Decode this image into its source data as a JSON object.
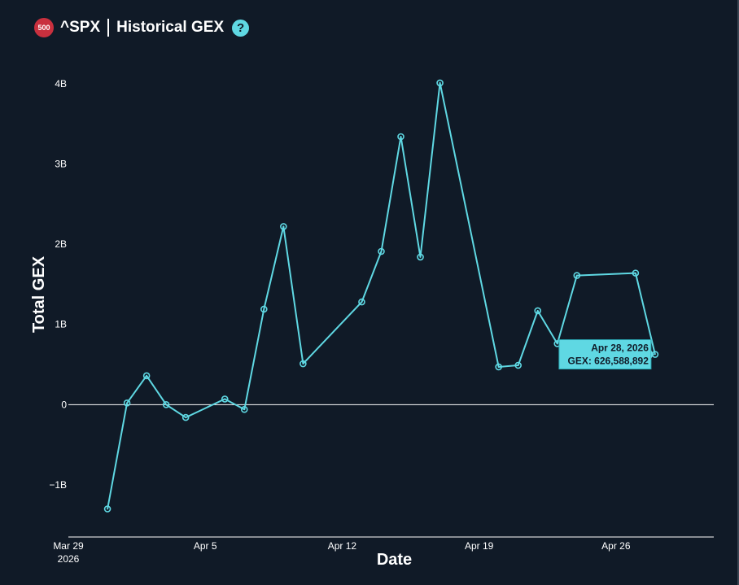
{
  "header": {
    "badge_text": "500",
    "ticker": "^SPX",
    "title": "Historical GEX",
    "help_glyph": "?"
  },
  "colors": {
    "background": "#101a27",
    "line": "#5fd8e3",
    "badge": "#c9303e",
    "zero_line": "#ffffff"
  },
  "chart_data": {
    "type": "line",
    "title": "",
    "xlabel": "Date",
    "ylabel": "Total GEX",
    "grid": false,
    "ylim": [
      -1650000000,
      4050000000
    ],
    "xlim": [
      "2026-03-29",
      "2026-05-01"
    ],
    "y_ticks": [
      {
        "value": -1000000000,
        "label": "−1B"
      },
      {
        "value": 0,
        "label": "0"
      },
      {
        "value": 1000000000,
        "label": "1B"
      },
      {
        "value": 2000000000,
        "label": "2B"
      },
      {
        "value": 3000000000,
        "label": "3B"
      },
      {
        "value": 4000000000,
        "label": "4B"
      }
    ],
    "x_ticks": [
      {
        "value": "2026-03-29",
        "label": "Mar 29",
        "sublabel": "2026"
      },
      {
        "value": "2026-04-05",
        "label": "Apr 5",
        "sublabel": ""
      },
      {
        "value": "2026-04-12",
        "label": "Apr 12",
        "sublabel": ""
      },
      {
        "value": "2026-04-19",
        "label": "Apr 19",
        "sublabel": ""
      },
      {
        "value": "2026-04-26",
        "label": "Apr 26",
        "sublabel": ""
      }
    ],
    "series": [
      {
        "x": [
          "2026-03-31",
          "2026-04-01",
          "2026-04-02",
          "2026-04-03",
          "2026-04-04",
          "2026-04-06",
          "2026-04-07",
          "2026-04-08",
          "2026-04-09",
          "2026-04-10",
          "2026-04-13",
          "2026-04-14",
          "2026-04-15",
          "2026-04-16",
          "2026-04-17",
          "2026-04-20",
          "2026-04-21",
          "2026-04-22",
          "2026-04-23",
          "2026-04-24",
          "2026-04-27",
          "2026-04-28"
        ],
        "y": [
          -1300000000,
          20000000,
          360000000,
          0,
          -160000000,
          70000000,
          -60000000,
          1190000000,
          2220000000,
          510000000,
          1280000000,
          1910000000,
          3340000000,
          1840000000,
          4010000000,
          470000000,
          490000000,
          1170000000,
          760000000,
          1610000000,
          1640000000,
          626588892
        ]
      }
    ],
    "tooltip": {
      "date": "Apr 28, 2026",
      "value_text": "GEX: 626,588,892"
    }
  }
}
